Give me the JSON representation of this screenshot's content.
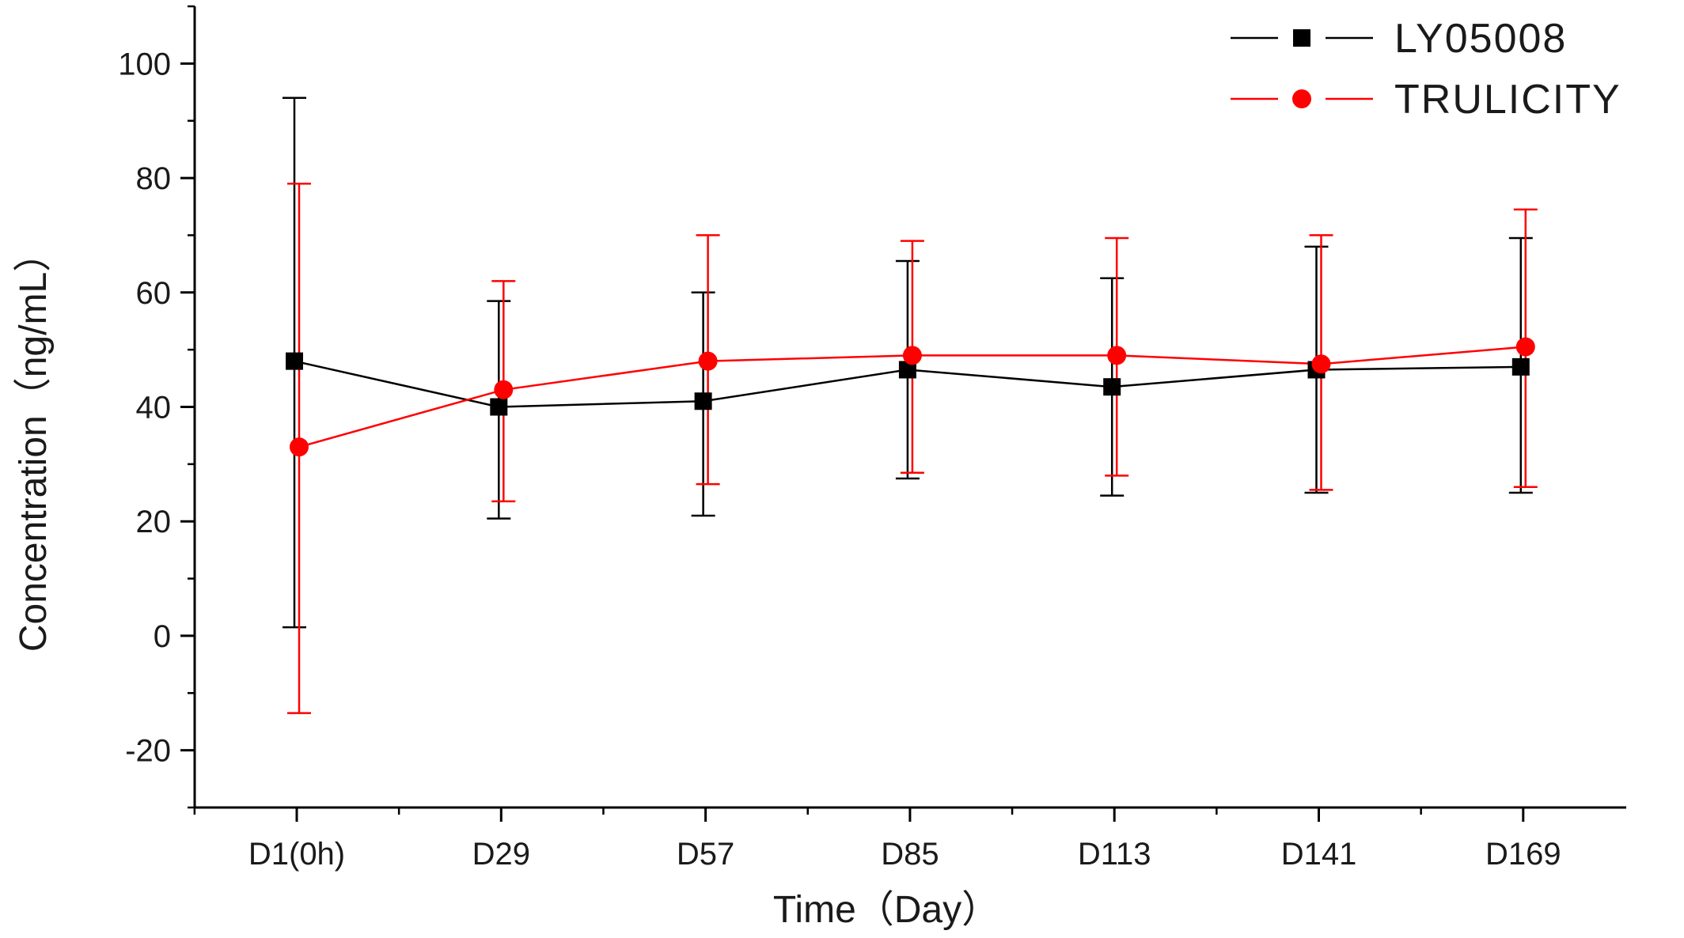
{
  "chart_data": {
    "type": "line",
    "xlabel": "Time（Day）",
    "ylabel": "Concentration（ng/mL）",
    "categories": [
      "D1(0h)",
      "D29",
      "D57",
      "D85",
      "D113",
      "D141",
      "D169"
    ],
    "ylim": [
      -30,
      110
    ],
    "yticks": [
      -20,
      0,
      20,
      40,
      60,
      80,
      100
    ],
    "y_minor_step": 10,
    "grid": false,
    "legend_position": "top-right",
    "series": [
      {
        "name": "LY05008",
        "color": "#000000",
        "marker": "square",
        "values": [
          48,
          40,
          41,
          46.5,
          43.5,
          46.5,
          47
        ],
        "error_upper": [
          94,
          58.5,
          60,
          65.5,
          62.5,
          68,
          69.5
        ],
        "error_lower": [
          1.5,
          20.5,
          21,
          27.5,
          24.5,
          25,
          25
        ]
      },
      {
        "name": "TRULICITY",
        "color": "#ff0000",
        "marker": "circle",
        "values": [
          33,
          43,
          48,
          49,
          49,
          47.5,
          50.5
        ],
        "error_upper": [
          79,
          62,
          70,
          69,
          69.5,
          70,
          74.5
        ],
        "error_lower": [
          -13.5,
          23.5,
          26.5,
          28.5,
          28,
          25.5,
          26
        ]
      }
    ]
  }
}
